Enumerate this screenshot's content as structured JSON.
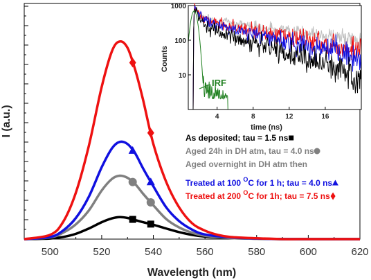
{
  "chart_data": [
    {
      "type": "line",
      "xlabel": "Wavelength (nm)",
      "ylabel": "I (a.u.)",
      "xlim": [
        490,
        620
      ],
      "ylim": [
        0,
        1
      ],
      "xticks": [
        500,
        520,
        540,
        560,
        580,
        600,
        620
      ],
      "yticks_labeled": false,
      "series": [
        {
          "name": "As deposited; tau = 1.5 ns",
          "color": "#000000",
          "marker": "square",
          "x": [
            490,
            500,
            505,
            510,
            515,
            520,
            524,
            527,
            530,
            533,
            536,
            540,
            545,
            550,
            555,
            560,
            570,
            580,
            590,
            600,
            610,
            620
          ],
          "y": [
            0.0,
            0.003,
            0.01,
            0.025,
            0.05,
            0.08,
            0.098,
            0.104,
            0.1,
            0.09,
            0.08,
            0.068,
            0.05,
            0.033,
            0.02,
            0.012,
            0.005,
            0.002,
            0.0,
            0.0,
            0.0,
            0.0
          ],
          "marker_x": [
            532,
            539
          ]
        },
        {
          "name": "Aged 24h in DH atm, tau = 4.0 ns",
          "color": "#808080",
          "marker": "circle",
          "x": [
            490,
            500,
            505,
            510,
            515,
            520,
            524,
            527,
            530,
            533,
            536,
            540,
            545,
            550,
            555,
            560,
            570,
            580,
            590,
            600,
            610,
            620
          ],
          "y": [
            0.0,
            0.008,
            0.03,
            0.07,
            0.135,
            0.23,
            0.285,
            0.3,
            0.29,
            0.26,
            0.215,
            0.16,
            0.095,
            0.055,
            0.03,
            0.016,
            0.005,
            0.002,
            0.0,
            0.0,
            0.0,
            0.0
          ],
          "marker_x": [
            532,
            539
          ]
        },
        {
          "name": "Treated at 100 °C for 1 h; tau = 4.0 ns",
          "color": "#1010e0",
          "marker": "triangle",
          "x": [
            490,
            500,
            505,
            510,
            515,
            520,
            524,
            527,
            530,
            533,
            536,
            540,
            545,
            550,
            555,
            560,
            570,
            580,
            590,
            600,
            610,
            620
          ],
          "y": [
            0.0,
            0.01,
            0.04,
            0.1,
            0.2,
            0.34,
            0.43,
            0.46,
            0.45,
            0.405,
            0.335,
            0.25,
            0.15,
            0.085,
            0.045,
            0.022,
            0.008,
            0.003,
            0.0,
            0.0,
            0.0,
            0.0
          ],
          "marker_x": [
            532,
            539
          ]
        },
        {
          "name": "Treated at 200 °C for 1h; tau = 7.5 ns",
          "color": "#ee1111",
          "marker": "diamond",
          "x": [
            490,
            500,
            505,
            510,
            515,
            520,
            524,
            527,
            530,
            533,
            536,
            540,
            545,
            550,
            555,
            560,
            565,
            570,
            580,
            590,
            600,
            610,
            620
          ],
          "y": [
            0.0,
            0.02,
            0.08,
            0.22,
            0.44,
            0.72,
            0.89,
            0.935,
            0.905,
            0.8,
            0.66,
            0.45,
            0.27,
            0.15,
            0.075,
            0.04,
            0.02,
            0.01,
            0.004,
            0.0,
            0.0,
            0.0,
            0.0
          ],
          "marker_x": [
            532,
            539
          ]
        }
      ],
      "legend": {
        "placement": "right",
        "entries": [
          {
            "text_parts": [
              "As deposited; tau = 1.5 ns "
            ],
            "sup": "",
            "color": "#000000",
            "marker": "square"
          },
          {
            "text_parts": [
              "Aged 24h in DH atm, tau = 4.0 ns "
            ],
            "sup": "",
            "color": "#808080",
            "marker": "circle"
          },
          {
            "text_parts": [
              "Aged overnight in DH atm then"
            ],
            "sup": "",
            "color": "#808080",
            "marker": "none"
          },
          {
            "text_parts": [
              "Treated at 100 ",
              "C for 1 h; tau = 4.0 ns "
            ],
            "sup": "O",
            "color": "#1010e0",
            "marker": "triangle"
          },
          {
            "text_parts": [
              "Treated at 200 ",
              "C for 1h; tau = 7.5 ns "
            ],
            "sup": "O",
            "color": "#ee1111",
            "marker": "diamond"
          }
        ]
      }
    },
    {
      "type": "line",
      "title": "",
      "xlabel": "time (ns)",
      "ylabel": "Counts",
      "xlim": [
        0.8,
        20
      ],
      "ylim": [
        1,
        1000
      ],
      "yscale": "log",
      "xticks": [
        4,
        8,
        12,
        16
      ],
      "yticks": [
        10,
        100,
        1000
      ],
      "series": [
        {
          "color": "#c0c0c0",
          "t0": 1.5,
          "peak": 900,
          "components": [
            {
              "amp": 0.5,
              "tau": 0.6
            },
            {
              "amp": 0.5,
              "tau": 12
            }
          ],
          "noise": 0.12
        },
        {
          "color": "#ee1111",
          "t0": 1.5,
          "peak": 900,
          "components": [
            {
              "amp": 0.55,
              "tau": 0.6
            },
            {
              "amp": 0.45,
              "tau": 9
            }
          ],
          "noise": 0.18
        },
        {
          "color": "#1010e0",
          "t0": 1.5,
          "peak": 900,
          "components": [
            {
              "amp": 0.6,
              "tau": 0.6
            },
            {
              "amp": 0.4,
              "tau": 7.5
            }
          ],
          "noise": 0.2
        },
        {
          "color": "#000000",
          "t0": 1.5,
          "peak": 900,
          "components": [
            {
              "amp": 0.7,
              "tau": 0.5
            },
            {
              "amp": 0.3,
              "tau": 5.5
            }
          ],
          "noise": 0.22
        }
      ],
      "irf": {
        "label": "IRF",
        "color": "#208020",
        "t0": 1.45,
        "peak": 700,
        "width": 0.45
      }
    }
  ]
}
